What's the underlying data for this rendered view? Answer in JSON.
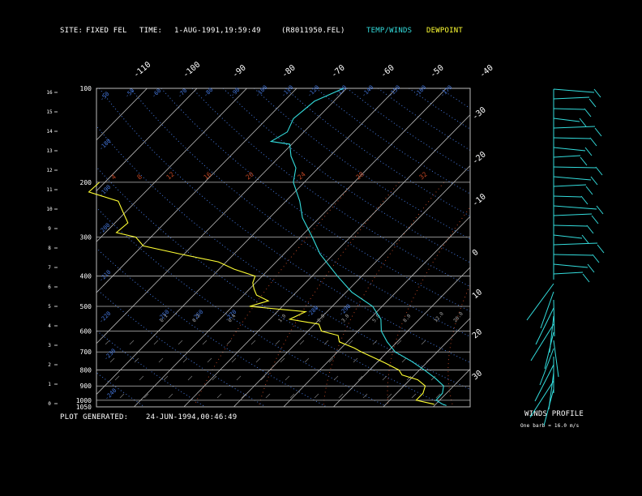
{
  "header": {
    "site_label": "SITE:",
    "site_value": "FIXED FEL",
    "time_label": "TIME:",
    "time_value": "1-AUG-1991,19:59:49",
    "file": "(R8011950.FEL)",
    "legend_temp": "TEMP/WINDS",
    "legend_dewpoint": "DEWPOINT",
    "colors": {
      "temp": "#33dddd",
      "dewpoint": "#ffff33",
      "grid": "#bbbbbb",
      "dry_adiabat": "#4477dd",
      "mixing_ratio": "#bb4422"
    }
  },
  "footer": {
    "generated_label": "PLOT GENERATED:",
    "generated_value": "24-JUN-1994,00:46:49"
  },
  "winds_panel": {
    "title": "WINDS PROFILE",
    "note": "One barb = 16.0 m/s"
  },
  "chart_data": {
    "type": "line",
    "subtype": "skew-T log-p sounding",
    "pressure_labels": [
      "100",
      "200",
      "300",
      "400",
      "500",
      "600",
      "700",
      "800",
      "900",
      "1000",
      "1050"
    ],
    "pressure_levels_hPa": [
      100,
      200,
      300,
      400,
      500,
      600,
      700,
      800,
      900,
      1000,
      1050
    ],
    "height_labels": [
      "16",
      "15",
      "14",
      "13",
      "12",
      "11",
      "10",
      "9",
      "8",
      "7",
      "6",
      "5",
      "4",
      "3",
      "2",
      "1",
      "0"
    ],
    "top_temp_labels": [
      "-110",
      "-100",
      "-90",
      "-80",
      "-70",
      "-60",
      "-50",
      "-40"
    ],
    "right_temp_labels": [
      "-30",
      "-20",
      "-10",
      "0",
      "10",
      "20",
      "30"
    ],
    "adiabat_labels": [
      "-50",
      "-50",
      "-60",
      "-70",
      "-80",
      "-90",
      "-100",
      "-110",
      "-120",
      "-130",
      "-140",
      "-150",
      "-160",
      "-170",
      "-180",
      "-190",
      "-200",
      "-210",
      "-220",
      "-230",
      "-240",
      "-250",
      "-260",
      "-270",
      "-280",
      "-290"
    ],
    "mixing_ratio_labels": [
      "4",
      "8",
      "12",
      "16",
      "20",
      "24",
      "28",
      "32"
    ],
    "lower_mixing_labels": [
      "0.1",
      "0.2",
      "0.4",
      "1.0",
      "2.0",
      "3.0",
      "5.0",
      "8.0",
      "12.0",
      "20.0"
    ],
    "series": [
      {
        "name": "TEMP/WINDS",
        "color": "#33dddd",
        "points_temp_pressure": [
          [
            -60.6,
            100
          ],
          [
            -63.9,
            110
          ],
          [
            -64.7,
            125
          ],
          [
            -63.3,
            138
          ],
          [
            -64.7,
            148
          ],
          [
            -60.4,
            151
          ],
          [
            -57.8,
            165
          ],
          [
            -54.5,
            180
          ],
          [
            -52.2,
            200
          ],
          [
            -47.2,
            230
          ],
          [
            -43.4,
            260
          ],
          [
            -37.6,
            300
          ],
          [
            -32.7,
            340
          ],
          [
            -24.9,
            400
          ],
          [
            -18.9,
            450
          ],
          [
            -11.9,
            500
          ],
          [
            -7.7,
            550
          ],
          [
            -5.3,
            600
          ],
          [
            -2.0,
            650
          ],
          [
            1.6,
            700
          ],
          [
            6.7,
            750
          ],
          [
            11.0,
            800
          ],
          [
            14.8,
            850
          ],
          [
            18.0,
            900
          ],
          [
            19.2,
            950
          ],
          [
            19.3,
            1000
          ],
          [
            21.4,
            1030
          ],
          [
            22.4,
            1040
          ]
        ]
      },
      {
        "name": "DEWPOINT",
        "color": "#ffff33",
        "points_temp_pressure": [
          [
            -91.1,
            200
          ],
          [
            -91.3,
            215
          ],
          [
            -83.6,
            230
          ],
          [
            -80.4,
            250
          ],
          [
            -77.4,
            270
          ],
          [
            -77.8,
            290
          ],
          [
            -73.0,
            300
          ],
          [
            -69.8,
            320
          ],
          [
            -60.7,
            340
          ],
          [
            -51.6,
            360
          ],
          [
            -47.0,
            380
          ],
          [
            -41.4,
            400
          ],
          [
            -40.6,
            420
          ],
          [
            -39.1,
            440
          ],
          [
            -37.4,
            460
          ],
          [
            -33.9,
            480
          ],
          [
            -36.6,
            500
          ],
          [
            -24.3,
            520
          ],
          [
            -26.0,
            550
          ],
          [
            -19.2,
            570
          ],
          [
            -17.3,
            600
          ],
          [
            -13.1,
            620
          ],
          [
            -11.6,
            650
          ],
          [
            -7.4,
            680
          ],
          [
            -5.2,
            700
          ],
          [
            -1.6,
            730
          ],
          [
            1.8,
            760
          ],
          [
            5.9,
            800
          ],
          [
            7.5,
            830
          ],
          [
            11.6,
            860
          ],
          [
            14.3,
            900
          ],
          [
            15.3,
            950
          ],
          [
            15.3,
            1000
          ],
          [
            19.7,
            1030
          ]
        ]
      }
    ],
    "xlim_temp_c": [
      -110,
      -40
    ],
    "ylim_pressure_hPa": [
      1050,
      100
    ],
    "y_scale": "log",
    "grid": true
  }
}
